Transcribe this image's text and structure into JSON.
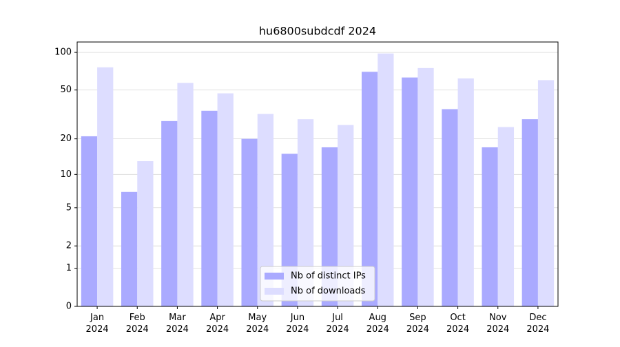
{
  "chart_data": {
    "type": "bar",
    "title": "hu6800subdcdf 2024",
    "categories": [
      "Jan\n2024",
      "Feb\n2024",
      "Mar\n2024",
      "Apr\n2024",
      "May\n2024",
      "Jun\n2024",
      "Jul\n2024",
      "Aug\n2024",
      "Sep\n2024",
      "Oct\n2024",
      "Nov\n2024",
      "Dec\n2024"
    ],
    "series": [
      {
        "name": "Nb of distinct IPs",
        "color": "#aaaaff",
        "values": [
          21,
          7,
          28,
          34,
          20,
          15,
          17,
          70,
          63,
          35,
          17,
          29
        ]
      },
      {
        "name": "Nb of downloads",
        "color": "#ddddff",
        "values": [
          76,
          13,
          57,
          47,
          32,
          29,
          26,
          98,
          75,
          62,
          25,
          60
        ]
      }
    ],
    "yscale": "symlog",
    "ylim": [
      0,
      121
    ],
    "yticks": [
      0,
      1,
      2,
      5,
      10,
      20,
      50,
      100
    ],
    "grid": true,
    "legend": "lower center"
  }
}
